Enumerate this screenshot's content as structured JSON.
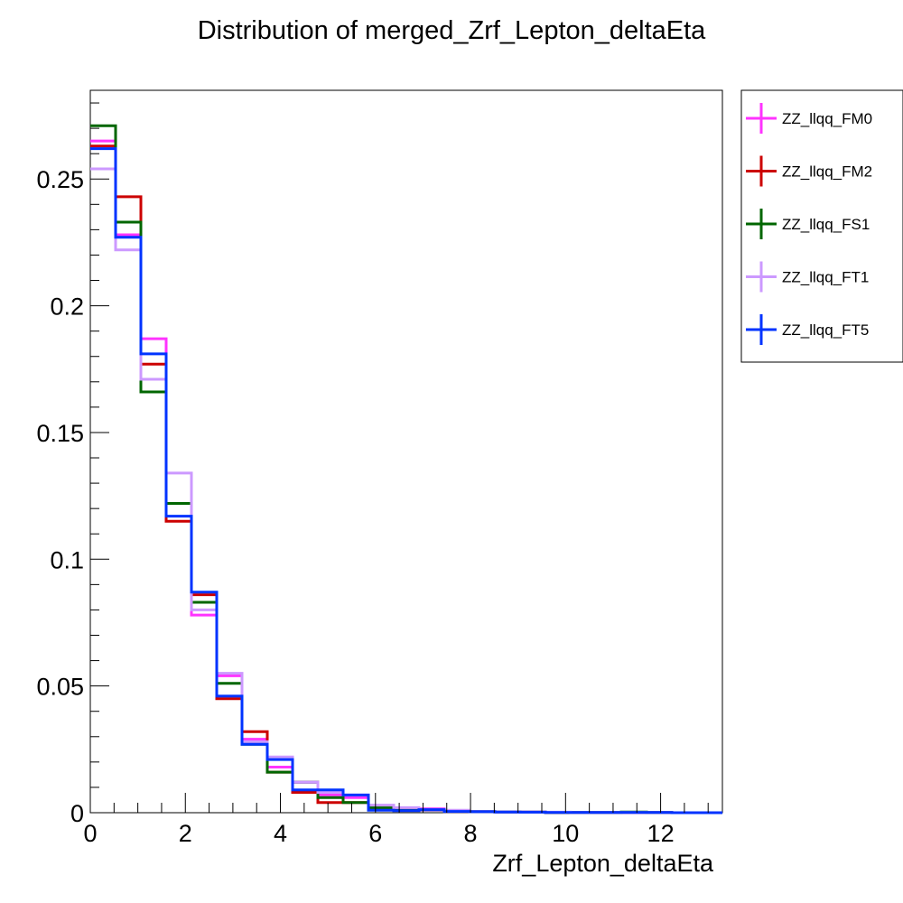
{
  "chart_data": {
    "type": "line",
    "title": "Distribution of merged_Zrf_Lepton_deltaEta",
    "xlabel": "Zrf_Lepton_deltaEta",
    "ylabel": "",
    "xlim": [
      0,
      13.3
    ],
    "ylim": [
      0,
      0.285
    ],
    "x_ticks": [
      0,
      2,
      4,
      6,
      8,
      10,
      12
    ],
    "x_tick_labels": [
      "0",
      "2",
      "4",
      "6",
      "8",
      "10",
      "12"
    ],
    "y_ticks": [
      0,
      0.05,
      0.1,
      0.15,
      0.2,
      0.25
    ],
    "y_tick_labels": [
      "0",
      "0.05",
      "0.1",
      "0.15",
      "0.2",
      "0.25"
    ],
    "bin_edges": [
      0,
      0.532,
      1.064,
      1.596,
      2.128,
      2.66,
      3.192,
      3.724,
      4.256,
      4.788,
      5.32,
      5.852,
      6.384,
      6.916,
      7.448,
      7.98,
      8.512,
      9.044,
      9.576,
      10.108,
      10.64,
      11.172,
      11.704,
      12.236,
      12.768,
      13.3
    ],
    "grid": false,
    "legend_position": "right-outside",
    "series": [
      {
        "name": "ZZ_llqq_FM0",
        "color": "#ff33ff",
        "values": [
          0.265,
          0.228,
          0.187,
          0.122,
          0.078,
          0.054,
          0.029,
          0.018,
          0.012,
          0.007,
          0.006,
          0.002,
          0.001,
          0.0015,
          0.0005,
          0.0005,
          0.0003,
          0.0002,
          0.0001,
          0.0001,
          0.0001,
          0.0001,
          0.0001,
          0,
          0
        ]
      },
      {
        "name": "ZZ_llqq_FM2",
        "color": "#cc0000",
        "values": [
          0.263,
          0.243,
          0.177,
          0.115,
          0.086,
          0.045,
          0.032,
          0.016,
          0.008,
          0.004,
          0.004,
          0.0015,
          0.001,
          0.001,
          0.0005,
          0.0005,
          0.0003,
          0.0002,
          0.0001,
          0.0001,
          0.0001,
          0.0001,
          0.0001,
          0,
          0
        ]
      },
      {
        "name": "ZZ_llqq_FS1",
        "color": "#006600",
        "values": [
          0.271,
          0.233,
          0.166,
          0.122,
          0.083,
          0.051,
          0.027,
          0.016,
          0.012,
          0.006,
          0.004,
          0.002,
          0.001,
          0.001,
          0.0005,
          0.0005,
          0.0003,
          0.0002,
          0.0001,
          0.0001,
          0.0001,
          0.0003,
          0.0001,
          0,
          0
        ]
      },
      {
        "name": "ZZ_llqq_FT1",
        "color": "#cc99ff",
        "values": [
          0.254,
          0.222,
          0.171,
          0.134,
          0.08,
          0.055,
          0.028,
          0.022,
          0.012,
          0.008,
          0.007,
          0.003,
          0.002,
          0.001,
          0.001,
          0.0005,
          0.0003,
          0.0002,
          0.0002,
          0.0001,
          0.0001,
          0.0001,
          0.0001,
          0,
          0
        ]
      },
      {
        "name": "ZZ_llqq_FT5",
        "color": "#0033ff",
        "values": [
          0.262,
          0.227,
          0.181,
          0.117,
          0.087,
          0.046,
          0.027,
          0.021,
          0.009,
          0.009,
          0.007,
          0.001,
          0.0008,
          0.0012,
          0.0005,
          0.0004,
          0.0003,
          0.0002,
          0.0001,
          0.0001,
          0.0001,
          0.0001,
          0.0001,
          0,
          0
        ]
      }
    ]
  }
}
